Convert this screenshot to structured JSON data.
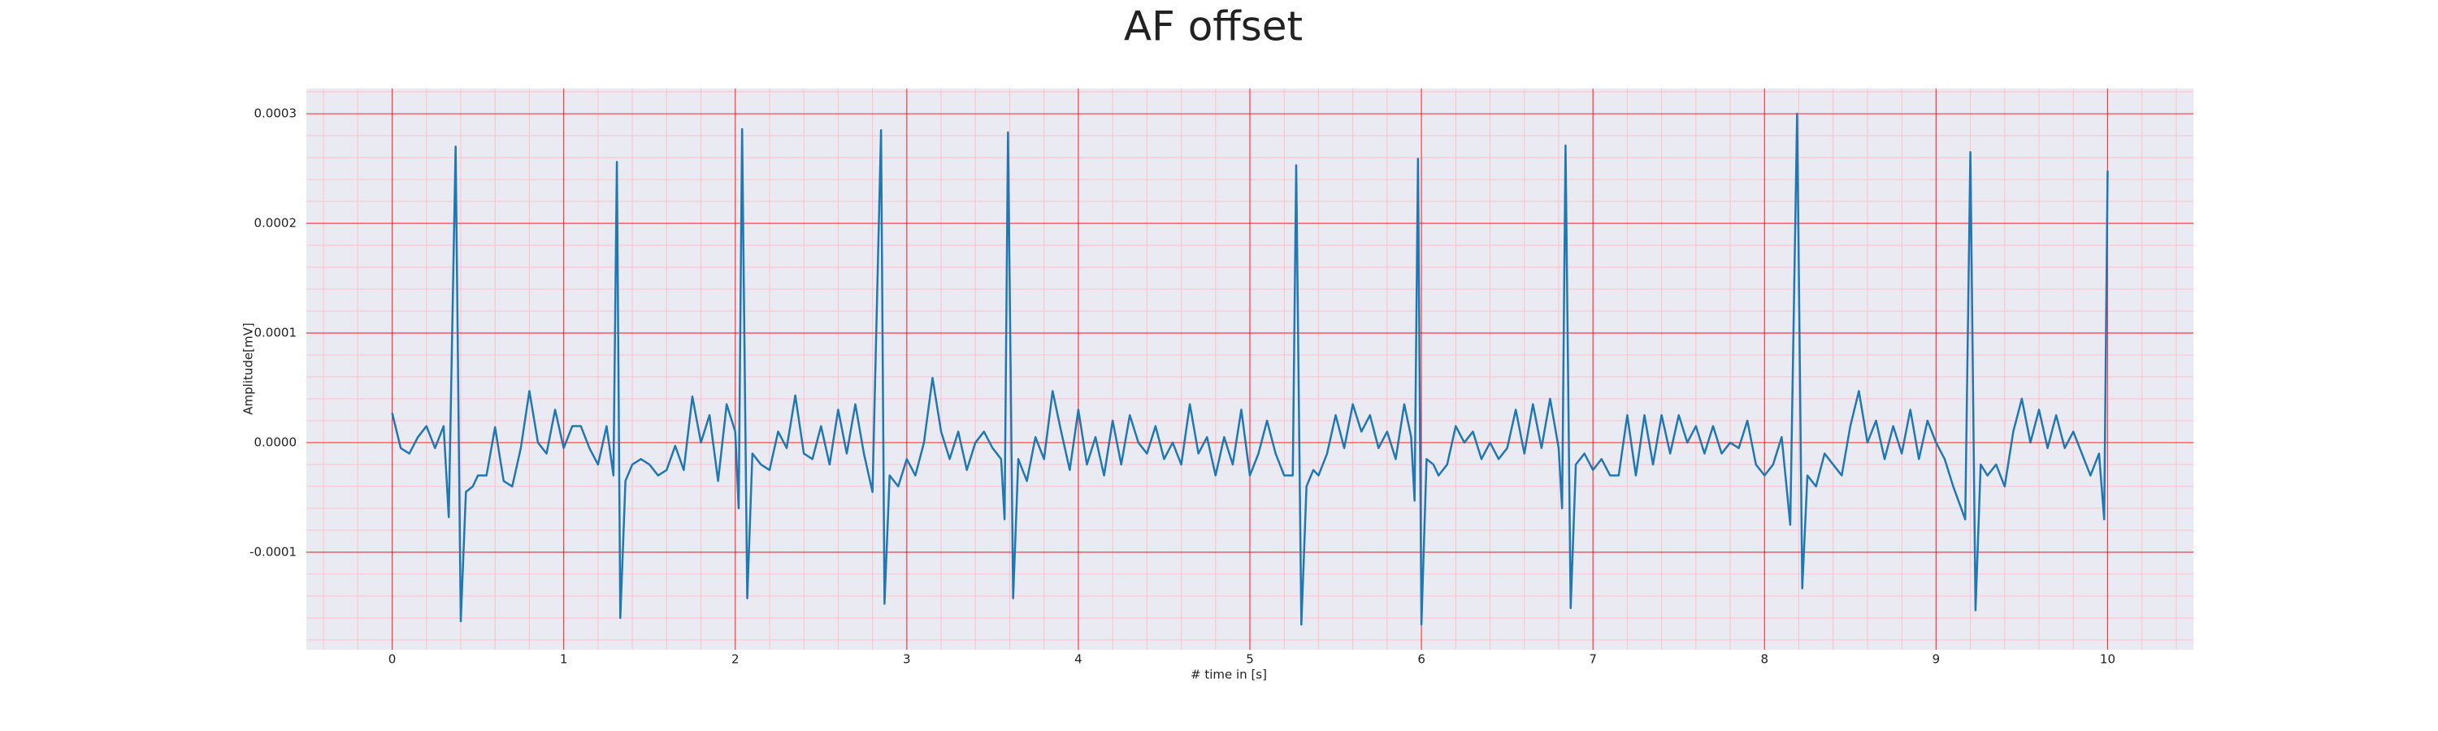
{
  "chart_data": {
    "type": "line",
    "title": "AF offset",
    "xlabel": "# time in [s]",
    "ylabel": "Amplitude[mV]",
    "color": "#1f77b4",
    "grid": true,
    "minor_grid": true,
    "xminor": 0.2,
    "yminor": 2e-05,
    "xlim": [
      -0.5,
      10.5
    ],
    "ylim": [
      -0.000189,
      0.000323
    ],
    "xticks": [
      0,
      1,
      2,
      3,
      4,
      5,
      6,
      7,
      8,
      9,
      10
    ],
    "yticks": [
      {
        "value": -0.0001,
        "label": "-0.0001"
      },
      {
        "value": 0,
        "label": "0.0000"
      },
      {
        "value": 0.0001,
        "label": "0.0001"
      },
      {
        "value": 0.0002,
        "label": "0.0002"
      },
      {
        "value": 0.0003,
        "label": "0.0003"
      }
    ],
    "x": [
      0,
      0.05,
      0.1,
      0.15,
      0.2,
      0.25,
      0.3,
      0.33,
      0.37,
      0.4,
      0.43,
      0.47,
      0.5,
      0.55,
      0.6,
      0.65,
      0.7,
      0.75,
      0.8,
      0.85,
      0.9,
      0.95,
      1.0,
      1.05,
      1.1,
      1.15,
      1.2,
      1.25,
      1.29,
      1.31,
      1.33,
      1.36,
      1.4,
      1.45,
      1.5,
      1.55,
      1.6,
      1.65,
      1.7,
      1.75,
      1.8,
      1.85,
      1.9,
      1.95,
      2.0,
      2.02,
      2.04,
      2.07,
      2.1,
      2.15,
      2.2,
      2.25,
      2.3,
      2.35,
      2.4,
      2.45,
      2.5,
      2.55,
      2.6,
      2.65,
      2.7,
      2.75,
      2.8,
      2.85,
      2.87,
      2.9,
      2.95,
      3.0,
      3.05,
      3.1,
      3.15,
      3.2,
      3.25,
      3.3,
      3.35,
      3.4,
      3.45,
      3.5,
      3.55,
      3.57,
      3.59,
      3.62,
      3.65,
      3.7,
      3.75,
      3.8,
      3.85,
      3.9,
      3.95,
      4.0,
      4.05,
      4.1,
      4.15,
      4.2,
      4.25,
      4.3,
      4.35,
      4.4,
      4.45,
      4.5,
      4.55,
      4.6,
      4.65,
      4.7,
      4.75,
      4.8,
      4.85,
      4.9,
      4.95,
      5.0,
      5.05,
      5.1,
      5.15,
      5.2,
      5.25,
      5.27,
      5.3,
      5.33,
      5.37,
      5.4,
      5.45,
      5.5,
      5.55,
      5.6,
      5.65,
      5.7,
      5.75,
      5.8,
      5.85,
      5.9,
      5.94,
      5.96,
      5.98,
      6.0,
      6.03,
      6.07,
      6.1,
      6.15,
      6.2,
      6.25,
      6.3,
      6.35,
      6.4,
      6.45,
      6.5,
      6.55,
      6.6,
      6.65,
      6.7,
      6.75,
      6.8,
      6.82,
      6.84,
      6.87,
      6.9,
      6.95,
      7.0,
      7.05,
      7.1,
      7.15,
      7.2,
      7.25,
      7.3,
      7.35,
      7.4,
      7.45,
      7.5,
      7.55,
      7.6,
      7.65,
      7.7,
      7.75,
      7.8,
      7.85,
      7.9,
      7.95,
      8.0,
      8.05,
      8.1,
      8.15,
      8.19,
      8.22,
      8.25,
      8.3,
      8.35,
      8.4,
      8.45,
      8.5,
      8.55,
      8.6,
      8.65,
      8.7,
      8.75,
      8.8,
      8.85,
      8.9,
      8.95,
      9.0,
      9.05,
      9.1,
      9.17,
      9.2,
      9.23,
      9.26,
      9.3,
      9.35,
      9.4,
      9.45,
      9.5,
      9.55,
      9.6,
      9.65,
      9.7,
      9.75,
      9.8,
      9.85,
      9.9,
      9.95,
      9.98,
      10.0
    ],
    "values": [
      2.7e-05,
      -5e-06,
      -1e-05,
      5e-06,
      1.5e-05,
      -5e-06,
      1.5e-05,
      -6.8e-05,
      0.00027,
      -0.000163,
      -4.5e-05,
      -4e-05,
      -3e-05,
      -3e-05,
      1.4e-05,
      -3.5e-05,
      -4e-05,
      -5e-06,
      4.7e-05,
      0,
      -1e-05,
      3e-05,
      -5e-06,
      1.5e-05,
      1.5e-05,
      -5e-06,
      -2e-05,
      1.5e-05,
      -3e-05,
      0.000256,
      -0.00016,
      -3.5e-05,
      -2e-05,
      -1.5e-05,
      -2e-05,
      -3e-05,
      -2.5e-05,
      -3e-06,
      -2.5e-05,
      4.2e-05,
      0,
      2.5e-05,
      -3.5e-05,
      3.5e-05,
      1e-05,
      -6e-05,
      0.000286,
      -0.000142,
      -1e-05,
      -2e-05,
      -2.5e-05,
      1e-05,
      -5e-06,
      4.3e-05,
      -1e-05,
      -1.5e-05,
      1.5e-05,
      -2e-05,
      3e-05,
      -1e-05,
      3.5e-05,
      -1e-05,
      -4.5e-05,
      0.000285,
      -0.000147,
      -3e-05,
      -4e-05,
      -1.5e-05,
      -3e-05,
      0,
      5.9e-05,
      1e-05,
      -1.5e-05,
      1e-05,
      -2.5e-05,
      0,
      1e-05,
      -5e-06,
      -1.5e-05,
      -7e-05,
      0.000283,
      -0.000142,
      -1.5e-05,
      -3.5e-05,
      5e-06,
      -1.5e-05,
      4.7e-05,
      1e-05,
      -2.5e-05,
      3e-05,
      -2e-05,
      5e-06,
      -3e-05,
      2e-05,
      -2e-05,
      2.5e-05,
      0,
      -1e-05,
      1.5e-05,
      -1.5e-05,
      0,
      -2e-05,
      3.5e-05,
      -1e-05,
      5e-06,
      -3e-05,
      5e-06,
      -2e-05,
      3e-05,
      -3e-05,
      -1e-05,
      2e-05,
      -1e-05,
      -3e-05,
      -3e-05,
      0.000253,
      -0.000166,
      -4e-05,
      -2.5e-05,
      -3e-05,
      -1e-05,
      2.5e-05,
      -5e-06,
      3.5e-05,
      1e-05,
      2.5e-05,
      -5e-06,
      1e-05,
      -1.5e-05,
      3.5e-05,
      5e-06,
      -5.3e-05,
      0.000259,
      -0.000166,
      -1.5e-05,
      -2e-05,
      -3e-05,
      -2e-05,
      1.5e-05,
      0,
      1e-05,
      -1.5e-05,
      0,
      -1.5e-05,
      -5e-06,
      3e-05,
      -1e-05,
      3.5e-05,
      -5e-06,
      4e-05,
      -5e-06,
      -6e-05,
      0.000271,
      -0.000151,
      -2e-05,
      -1e-05,
      -2.5e-05,
      -1.5e-05,
      -3e-05,
      -3e-05,
      2.5e-05,
      -3e-05,
      2.5e-05,
      -2e-05,
      2.5e-05,
      -1e-05,
      2.5e-05,
      0,
      1.5e-05,
      -1e-05,
      1.5e-05,
      -1e-05,
      0,
      -5e-06,
      2e-05,
      -2e-05,
      -3e-05,
      -2e-05,
      5e-06,
      -7.5e-05,
      0.0003,
      -0.000133,
      -3e-05,
      -4e-05,
      -1e-05,
      -2e-05,
      -3e-05,
      1.5e-05,
      4.7e-05,
      0,
      2e-05,
      -1.5e-05,
      1.5e-05,
      -1e-05,
      3e-05,
      -1.5e-05,
      2e-05,
      0,
      -1.5e-05,
      -4e-05,
      -7e-05,
      0.000265,
      -0.000153,
      -2e-05,
      -3e-05,
      -2e-05,
      -4e-05,
      1e-05,
      4e-05,
      0,
      3e-05,
      -5e-06,
      2.5e-05,
      -5e-06,
      1e-05,
      -1e-05,
      -3e-05,
      -1e-05,
      -7e-05,
      0.000248
    ]
  }
}
